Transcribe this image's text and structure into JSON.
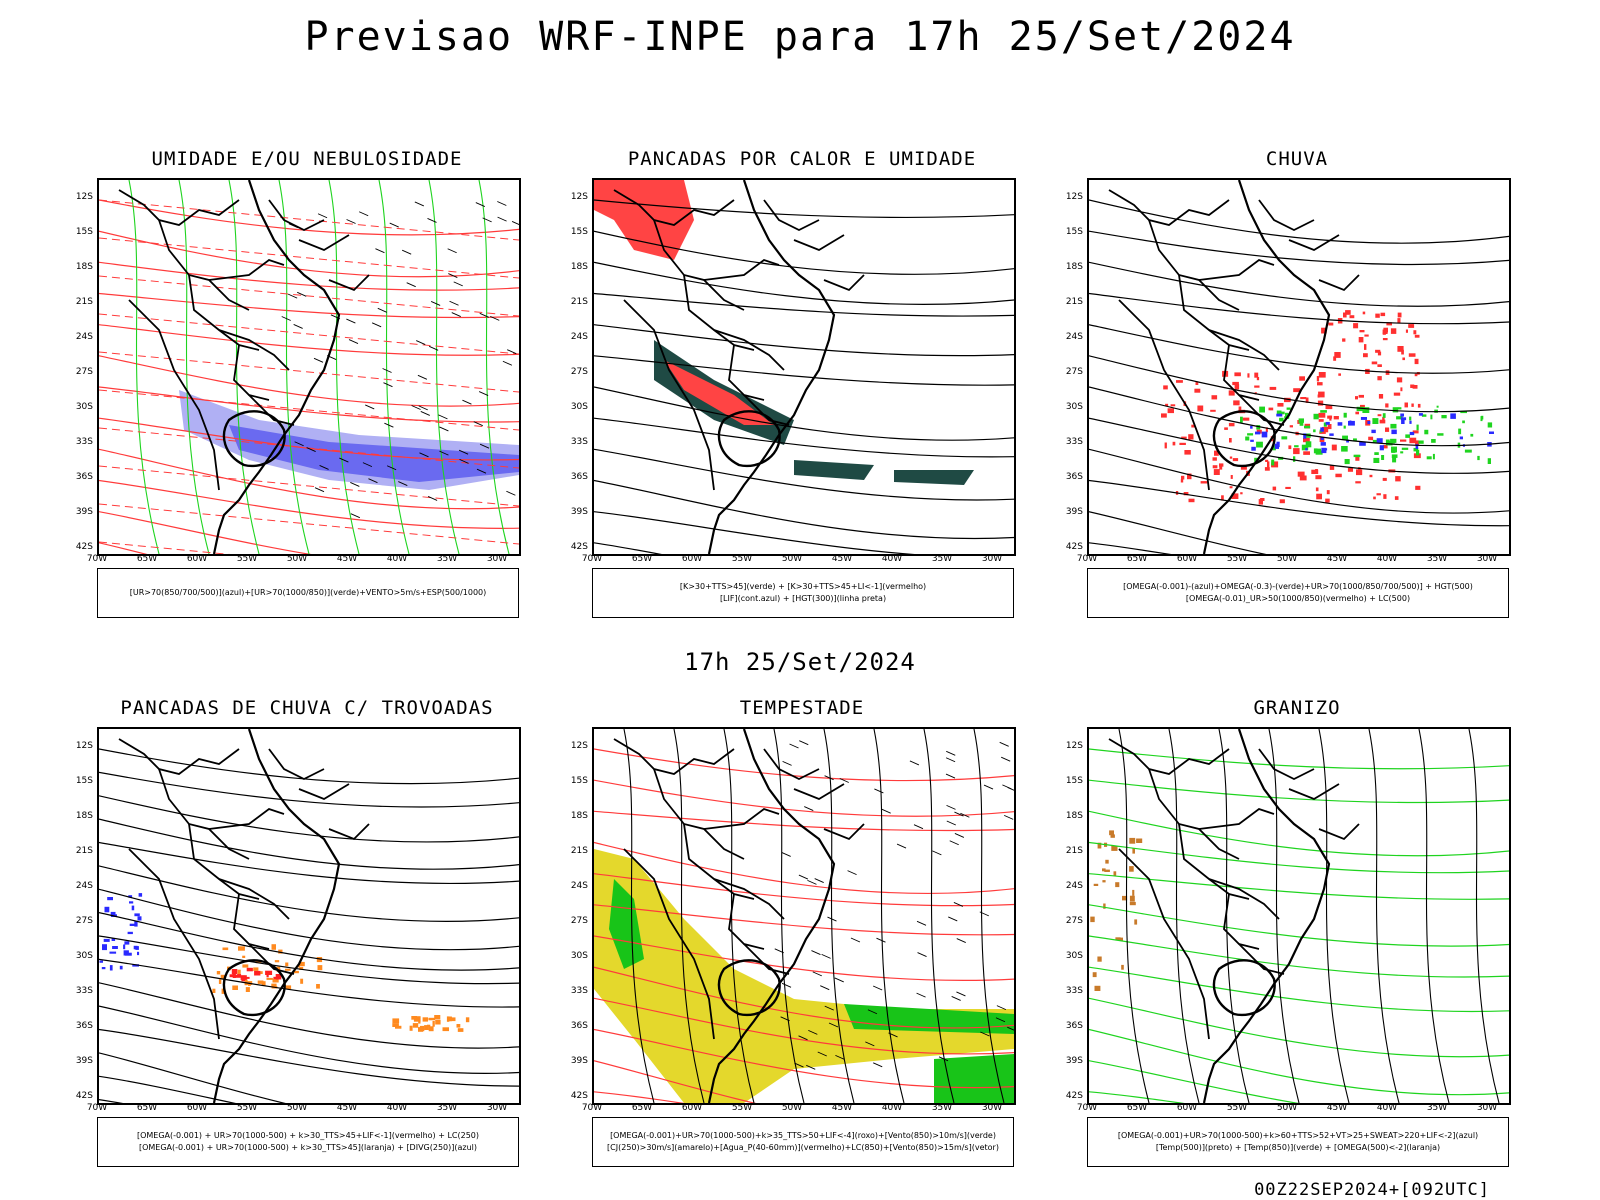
{
  "title": "Previsao WRF-INPE  para 17h 25/Set/2024",
  "subtitle": "17h 25/Set/2024",
  "footer": "00Z22SEP2024+[092UTC]",
  "lat_labels": [
    "12S",
    "15S",
    "18S",
    "21S",
    "24S",
    "27S",
    "30S",
    "33S",
    "36S",
    "39S",
    "42S"
  ],
  "lon_labels": [
    "70W",
    "65W",
    "60W",
    "55W",
    "50W",
    "45W",
    "40W",
    "35W",
    "30W"
  ],
  "panels": [
    {
      "title": "UMIDADE E/OU NEBULOSIDADE",
      "legend": [
        "[UR>70(850/700/500)](azul)+[UR>70(1000/850)](verde)+VENTO>5m/s+ESP(500/1000)"
      ],
      "colors": {
        "fill1": "#6a6af0",
        "fill2": "#b0b0f4",
        "line1": "#ff3b3b",
        "line2": "#1fd41f"
      }
    },
    {
      "title": "PANCADAS POR CALOR E UMIDADE",
      "legend": [
        "[K>30+TTS>45](verde) + [K>30+TTS>45+LI<-1](vermelho)",
        "[LIF](cont.azul) + [HGT(300)](linha preta)"
      ],
      "colors": {
        "fill1": "#ff4444",
        "fill2": "#1f4a44",
        "line1": "#2a2aff",
        "line2": "#000000"
      }
    },
    {
      "title": "CHUVA",
      "legend": [
        "[OMEGA(-0.001)-(azul)+OMEGA(-0.3)-(verde)+UR>70(1000/850/700/500)] + HGT(500)",
        "[OMEGA(-0.01)_UR>50(1000/850)(vermelho) + LC(500)"
      ],
      "colors": {
        "fill1": "#ff3030",
        "fill2": "#1fd41f",
        "line1": "#2a2aff",
        "line2": "#000000"
      }
    },
    {
      "title": "PANCADAS DE CHUVA C/ TROVOADAS",
      "legend": [
        "[OMEGA(-0.001) + UR>70(1000-500) + k>30_TTS>45+LIF<-1](vermelho) + LC(250)",
        "[OMEGA(-0.001) + UR>70(1000-500) + k>30_TTS>45](laranja) + [DIVG(250)](azul)"
      ],
      "colors": {
        "fill1": "#ff8a1f",
        "fill2": "#ff2020",
        "line1": "#2a2aff",
        "line2": "#000000"
      }
    },
    {
      "title": "TEMPESTADE",
      "legend": [
        "[OMEGA(-0.001)+UR>70(1000-500)+k>35_TTS>50+LIF<-4](roxo)+[Vento(850)>10m/s](verde)",
        "[CJ(250)>30m/s](amarelo)+[Agua_P(40-60mm)](vermelho)+LC(850)+[Vento(850)>15m/s](vetor)"
      ],
      "colors": {
        "fill1": "#e4d82c",
        "fill2": "#18c418",
        "line1": "#ff3b3b",
        "line2": "#000000"
      }
    },
    {
      "title": "GRANIZO",
      "legend": [
        "[OMEGA(-0.001)+UR>70(1000-500)+k>60+TTS>52+VT>25+SWEAT>220+LIF<-2](azul)",
        "[Temp(500)](preto) + [Temp(850)](verde) + [OMEGA(500)<-2](laranja)"
      ],
      "colors": {
        "fill1": "#c87a2a",
        "fill2": "#1fd41f",
        "line1": "#1fd41f",
        "line2": "#000000"
      }
    }
  ]
}
